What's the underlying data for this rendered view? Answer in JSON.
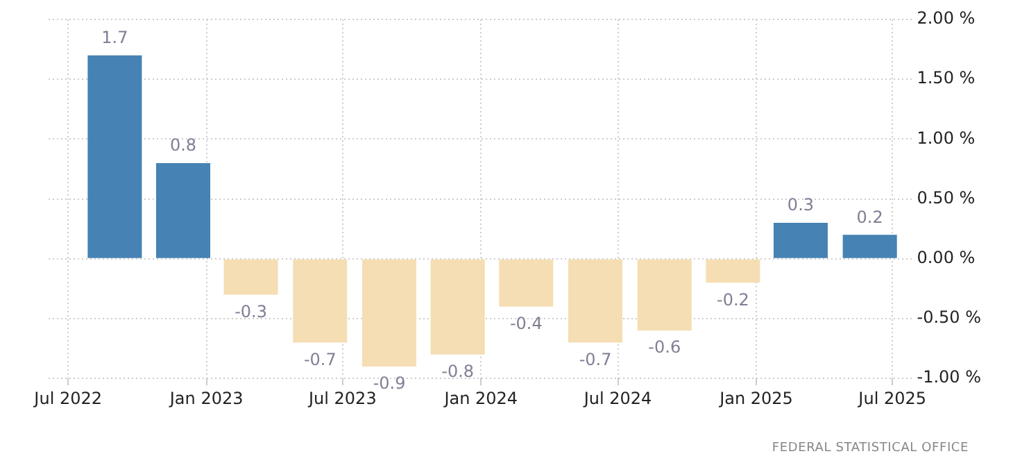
{
  "chart_data": {
    "type": "bar",
    "x": [
      "2022-09",
      "2022-12",
      "2023-03",
      "2023-06",
      "2023-09",
      "2023-12",
      "2024-03",
      "2024-06",
      "2024-09",
      "2024-12",
      "2025-03",
      "2025-06"
    ],
    "values": [
      1.7,
      0.8,
      -0.3,
      -0.7,
      -0.9,
      -0.8,
      -0.4,
      -0.7,
      -0.6,
      -0.2,
      0.3,
      0.2
    ],
    "colors": [
      "#4682b4",
      "#4682b4",
      "#f5deb3",
      "#f5deb3",
      "#f5deb3",
      "#f5deb3",
      "#f5deb3",
      "#f5deb3",
      "#f5deb3",
      "#f5deb3",
      "#4682b4",
      "#4682b4"
    ],
    "data_labels": true,
    "xlim": [
      "2022-06-05",
      "2025-07-28"
    ],
    "xticks": [
      {
        "value": "2022-07",
        "label": "Jul 2022"
      },
      {
        "value": "2023-01",
        "label": "Jan 2023"
      },
      {
        "value": "2023-07",
        "label": "Jul 2023"
      },
      {
        "value": "2024-01",
        "label": "Jan 2024"
      },
      {
        "value": "2024-07",
        "label": "Jul 2024"
      },
      {
        "value": "2025-01",
        "label": "Jan 2025"
      },
      {
        "value": "2025-07",
        "label": "Jul 2025"
      }
    ],
    "ylim": [
      -1,
      2
    ],
    "yticks": [
      {
        "value": -1,
        "label": "-1.00 %"
      },
      {
        "value": -0.5,
        "label": "-0.50 %"
      },
      {
        "value": 0,
        "label": "0.00 %"
      },
      {
        "value": 0.5,
        "label": "0.50 %"
      },
      {
        "value": 1,
        "label": "1.00 %"
      },
      {
        "value": 1.5,
        "label": "1.50 %"
      },
      {
        "value": 2,
        "label": "2.00 %"
      }
    ],
    "grid": true,
    "annotations": [
      "FEDERAL STATISTICAL OFFICE"
    ]
  }
}
